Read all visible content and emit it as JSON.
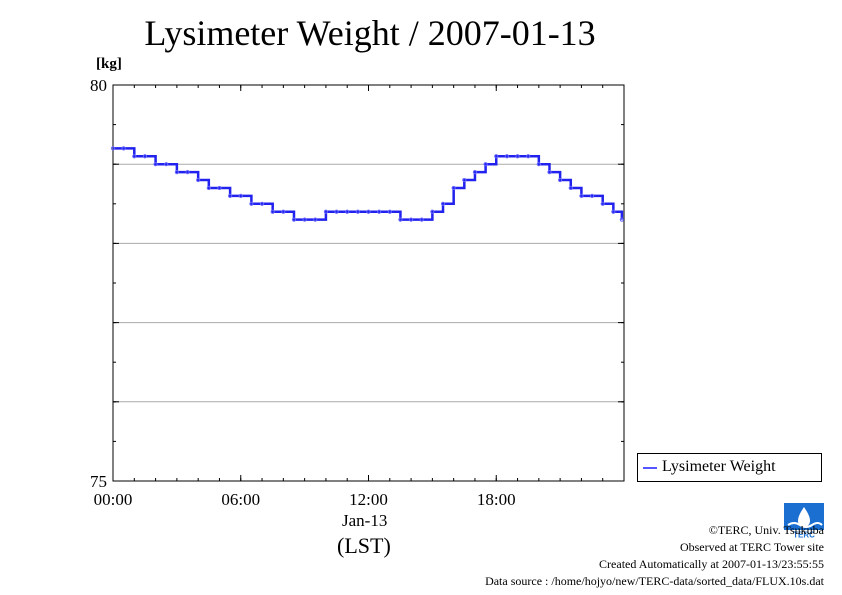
{
  "title": "Lysimeter Weight / 2007-01-13",
  "unit_label": "[kg]",
  "x_sublabel_date": "Jan-13",
  "x_sublabel_tz": "(LST)",
  "legend_label": "Lysimeter Weight",
  "footer": {
    "copyright": "©TERC, Univ. Tsukuba",
    "observed": "Observed at TERC Tower site",
    "created": "Created Automatically at 2007-01-13/23:55:55",
    "source": "Data source : /home/hojyo/new/TERC-data/sorted_data/FLUX.10s.dat"
  },
  "logo_text": "TERC",
  "colors": {
    "series": "#2222ee",
    "marker": "#6666ff",
    "grid": "#aaaaaa"
  },
  "chart_data": {
    "type": "line",
    "title": "Lysimeter Weight / 2007-01-13",
    "ylabel": "[kg]",
    "xlabel": "(LST)",
    "xlim": [
      0,
      24
    ],
    "ylim": [
      75,
      80
    ],
    "x_ticks": [
      {
        "value": 0,
        "label": "00:00"
      },
      {
        "value": 6,
        "label": "06:00"
      },
      {
        "value": 12,
        "label": "12:00"
      },
      {
        "value": 18,
        "label": "18:00"
      }
    ],
    "y_ticks": [
      {
        "value": 75,
        "label": "75"
      },
      {
        "value": 80,
        "label": "80"
      }
    ],
    "y_grid": [
      76,
      77,
      78,
      79
    ],
    "legend": "right-bottom, outside plot",
    "series": [
      {
        "name": "Lysimeter Weight",
        "x": [
          0.0,
          0.5,
          1.0,
          1.5,
          2.0,
          2.5,
          3.0,
          3.5,
          4.0,
          4.5,
          5.0,
          5.5,
          6.0,
          6.5,
          7.0,
          7.5,
          8.0,
          8.5,
          9.0,
          9.5,
          10.0,
          10.5,
          11.0,
          11.5,
          12.0,
          12.5,
          13.0,
          13.5,
          14.0,
          14.5,
          15.0,
          15.5,
          16.0,
          16.5,
          17.0,
          17.5,
          18.0,
          18.5,
          19.0,
          19.5,
          20.0,
          20.5,
          21.0,
          21.5,
          22.0,
          22.5,
          23.0,
          23.5,
          23.9
        ],
        "y": [
          79.2,
          79.2,
          79.1,
          79.1,
          79.0,
          79.0,
          78.9,
          78.9,
          78.8,
          78.7,
          78.7,
          78.6,
          78.6,
          78.5,
          78.5,
          78.4,
          78.4,
          78.3,
          78.3,
          78.3,
          78.4,
          78.4,
          78.4,
          78.4,
          78.4,
          78.4,
          78.4,
          78.3,
          78.3,
          78.3,
          78.4,
          78.5,
          78.7,
          78.8,
          78.9,
          79.0,
          79.1,
          79.1,
          79.1,
          79.1,
          79.0,
          78.9,
          78.8,
          78.7,
          78.6,
          78.6,
          78.5,
          78.4,
          78.3
        ]
      }
    ]
  }
}
